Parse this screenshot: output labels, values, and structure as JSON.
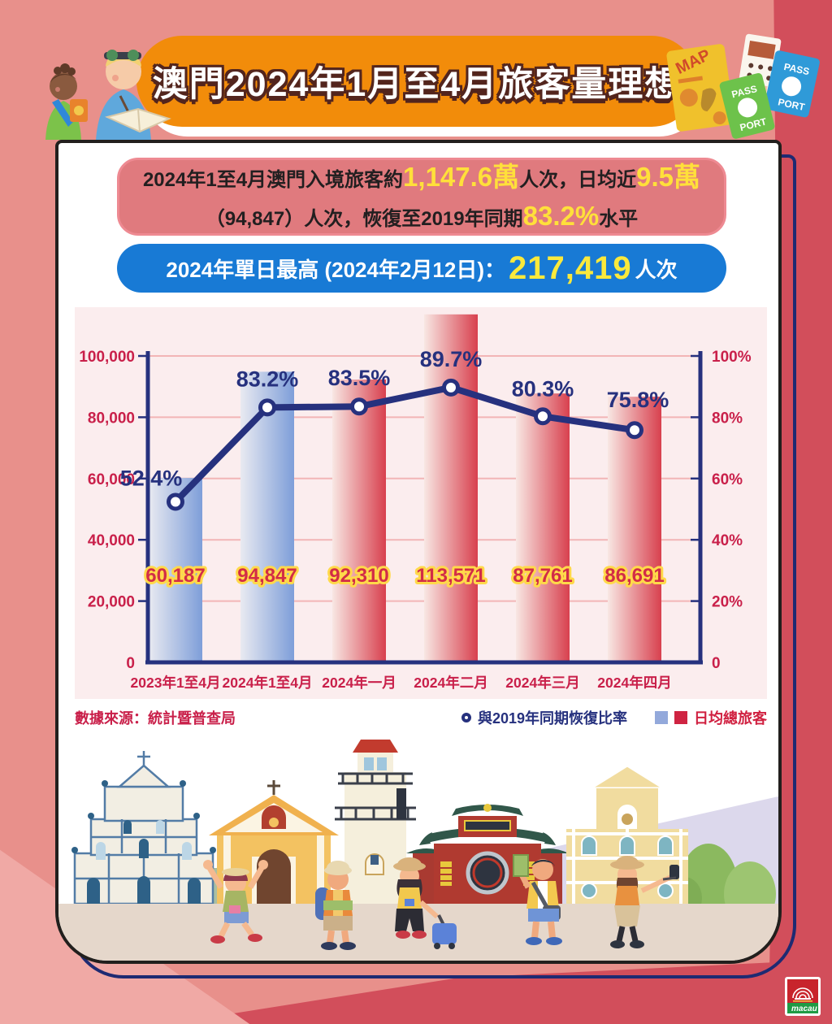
{
  "header": {
    "title": "澳門2024年1月至4月旅客量理想",
    "decor": {
      "map_label": "MAP",
      "pass_label": "PASS",
      "port_label": "PORT"
    }
  },
  "summary_box": {
    "seg1": "2024年1至4月澳門入境旅客約",
    "big1": "1,147.6萬",
    "seg2": "人次，日均近",
    "big2": "9.5萬",
    "seg3": "（94,847）人次，恢復至2019年同期",
    "big3": "83.2%",
    "seg4": "水平"
  },
  "highlight_box": {
    "label": "2024年單日最高 (2024年2月12日)：",
    "value": "217,419",
    "suffix": "人次"
  },
  "chart_data": {
    "type": "combo-bar-line",
    "categories": [
      "2023年1至4月",
      "2024年1至4月",
      "2024年一月",
      "2024年二月",
      "2024年三月",
      "2024年四月"
    ],
    "series": [
      {
        "name": "日均總旅客",
        "type": "bar",
        "values": [
          60187,
          94847,
          92310,
          113571,
          87761,
          86691
        ],
        "value_labels": [
          "60,187",
          "94,847",
          "92,310",
          "113,571",
          "87,761",
          "86,691"
        ],
        "bar_palette": [
          "blue",
          "blue",
          "red",
          "red",
          "red",
          "red"
        ]
      },
      {
        "name": "與2019年同期恢復比率",
        "type": "line",
        "values_pct": [
          52.4,
          83.2,
          83.5,
          89.7,
          80.3,
          75.8
        ],
        "point_labels": [
          "52.4%",
          "83.2%",
          "83.5%",
          "89.7%",
          "80.3%",
          "75.8%"
        ]
      }
    ],
    "left_axis": {
      "max": 100000,
      "ticks": [
        {
          "v": 100000,
          "label": "100,000"
        },
        {
          "v": 80000,
          "label": "80,000"
        },
        {
          "v": 60000,
          "label": "60,000"
        },
        {
          "v": 40000,
          "label": "40,000"
        },
        {
          "v": 20000,
          "label": "20,000"
        },
        {
          "v": 0,
          "label": "0"
        }
      ]
    },
    "right_axis": {
      "max": 100,
      "ticks": [
        {
          "v": 100,
          "label": "100%"
        },
        {
          "v": 80,
          "label": "80%"
        },
        {
          "v": 60,
          "label": "60%"
        },
        {
          "v": 40,
          "label": "40%"
        },
        {
          "v": 20,
          "label": "20%"
        },
        {
          "v": 0,
          "label": "0"
        }
      ]
    },
    "grid": true,
    "legend_position": "bottom-right"
  },
  "footer": {
    "source": "數據來源：統計暨普查局",
    "legend_line": "與2019年同期恢復比率",
    "legend_bar": "日均總旅客"
  },
  "logo": {
    "text": "macau"
  },
  "colors": {
    "bg": "#E8908B",
    "bg_dark": "#D24E5B",
    "bg_light": "#F0A9A5",
    "banner_orange": "#F28C0A",
    "box_salmon": "#E07A7E",
    "box_blue": "#187AD5",
    "yellow": "#FFE03A",
    "accent_navy": "#26317E",
    "accent_crimson": "#C9204A",
    "panel_pink": "#FBEDEE",
    "grid_pink": "#F2B5B6",
    "bar_blue_start": "#E9EAF1",
    "bar_blue_end": "#7E9ED9",
    "bar_red_start": "#F8E7E3",
    "bar_red_end": "#D8404E"
  }
}
